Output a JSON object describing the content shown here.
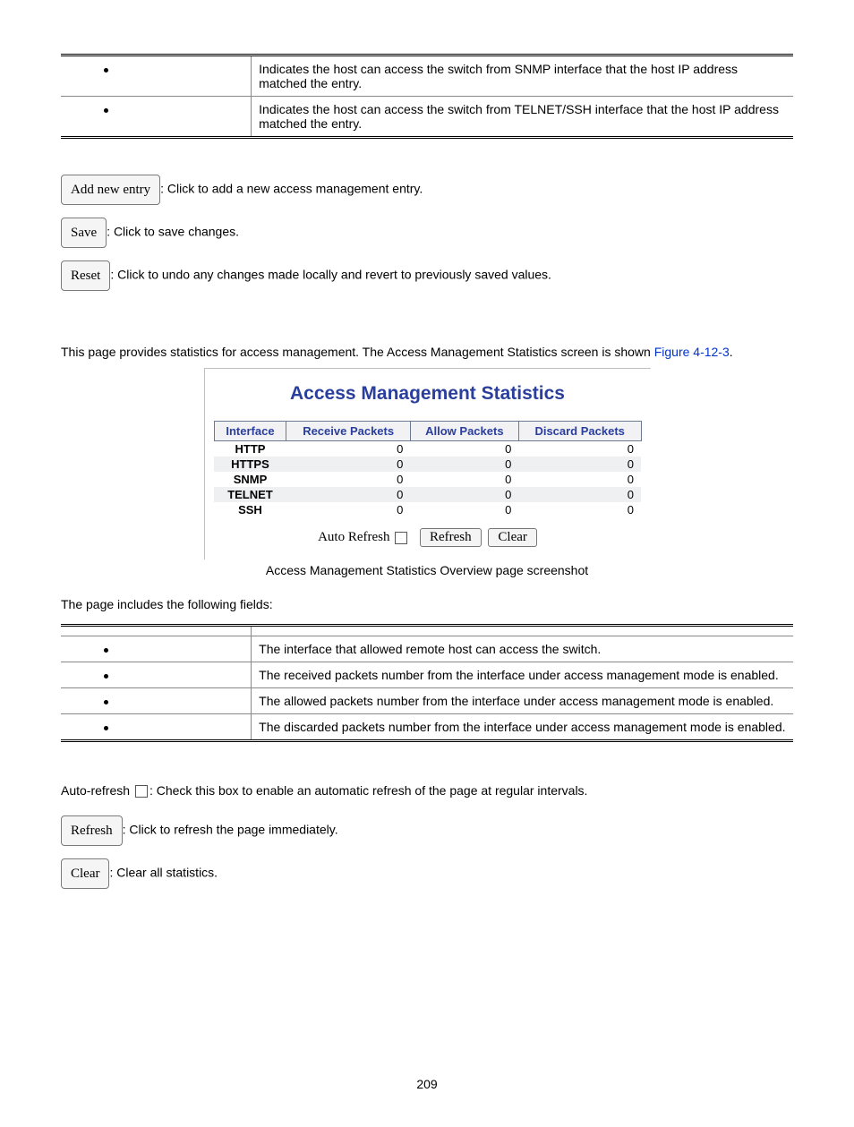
{
  "top_table": {
    "rows": [
      {
        "desc": "Indicates the host can access the switch from SNMP interface that the host IP address matched the entry."
      },
      {
        "desc": "Indicates the host can access the switch from TELNET/SSH interface that the host IP address matched the entry."
      }
    ]
  },
  "actions1": [
    {
      "btn": "Add new entry",
      "desc": ": Click to add a new access management entry."
    },
    {
      "btn": "Save",
      "desc": ": Click to save changes."
    },
    {
      "btn": "Reset",
      "desc": ": Click to undo any changes made locally and revert to previously saved values."
    }
  ],
  "intro_para_a": "This page provides statistics for access management. The Access Management Statistics screen is shown ",
  "intro_para_link": "Figure 4-12-3",
  "intro_para_b": ".",
  "stats": {
    "title": "Access Management Statistics",
    "headers": [
      "Interface",
      "Receive Packets",
      "Allow Packets",
      "Discard Packets"
    ],
    "rows": [
      {
        "iface": "HTTP",
        "r": "0",
        "a": "0",
        "d": "0",
        "alt": false
      },
      {
        "iface": "HTTPS",
        "r": "0",
        "a": "0",
        "d": "0",
        "alt": true
      },
      {
        "iface": "SNMP",
        "r": "0",
        "a": "0",
        "d": "0",
        "alt": false
      },
      {
        "iface": "TELNET",
        "r": "0",
        "a": "0",
        "d": "0",
        "alt": true
      },
      {
        "iface": "SSH",
        "r": "0",
        "a": "0",
        "d": "0",
        "alt": false
      }
    ],
    "auto_refresh_label": "Auto Refresh",
    "refresh_btn": "Refresh",
    "clear_btn": "Clear"
  },
  "caption": "Access Management Statistics Overview page screenshot",
  "fields_intro": "The page includes the following fields:",
  "fields_table": {
    "rows": [
      {
        "desc": "The interface that allowed remote host can access the switch."
      },
      {
        "desc": "The received packets number from the interface under access management mode is enabled."
      },
      {
        "desc": "The allowed packets number from the interface under access management mode is enabled."
      },
      {
        "desc": "The discarded packets number from the interface under access management mode is enabled."
      }
    ]
  },
  "autorefresh_line_a": "Auto-refresh ",
  "autorefresh_line_b": ": Check this box to enable an automatic refresh of the page at regular intervals.",
  "actions2": [
    {
      "btn": "Refresh",
      "desc": ": Click to refresh the page immediately."
    },
    {
      "btn": "Clear",
      "desc": ": Clear all statistics."
    }
  ],
  "page_number": "209"
}
